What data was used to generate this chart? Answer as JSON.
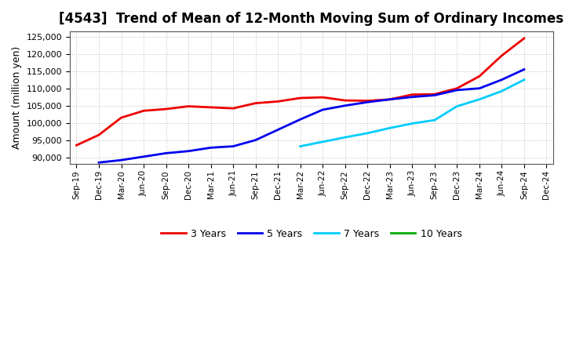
{
  "title": "[4543]  Trend of Mean of 12-Month Moving Sum of Ordinary Incomes",
  "ylabel": "Amount (million yen)",
  "background_color": "#ffffff",
  "grid_color": "#c0c0c0",
  "ylim": [
    88000,
    126500
  ],
  "yticks": [
    90000,
    95000,
    100000,
    105000,
    110000,
    115000,
    120000,
    125000
  ],
  "series": {
    "3 Years": {
      "color": "#ee0000",
      "data": {
        "Sep-19": 93500,
        "Dec-19": 96500,
        "Mar-20": 101500,
        "Jun-20": 103500,
        "Sep-20": 104000,
        "Dec-20": 104800,
        "Mar-21": 104500,
        "Jun-21": 104200,
        "Sep-21": 105700,
        "Dec-21": 106200,
        "Mar-22": 107200,
        "Jun-22": 107400,
        "Sep-22": 106500,
        "Dec-22": 106400,
        "Mar-23": 106800,
        "Jun-23": 108200,
        "Sep-23": 108300,
        "Dec-23": 110000,
        "Mar-24": 113500,
        "Jun-24": 119500,
        "Sep-24": 124500
      }
    },
    "5 Years": {
      "color": "#0000ee",
      "data": {
        "Dec-19": 88500,
        "Mar-20": 89200,
        "Jun-20": 90200,
        "Sep-20": 91200,
        "Dec-20": 91800,
        "Mar-21": 92800,
        "Jun-21": 93200,
        "Sep-21": 95000,
        "Dec-21": 98000,
        "Mar-22": 101000,
        "Jun-22": 103800,
        "Sep-22": 105000,
        "Dec-22": 106000,
        "Mar-23": 106800,
        "Jun-23": 107500,
        "Sep-23": 108000,
        "Dec-23": 109500,
        "Mar-24": 110000,
        "Jun-24": 112500,
        "Sep-24": 115500
      }
    },
    "7 Years": {
      "color": "#00ccff",
      "data": {
        "Mar-22": 93200,
        "Jun-22": 94500,
        "Sep-22": 95800,
        "Dec-22": 97000,
        "Mar-23": 98500,
        "Jun-23": 99800,
        "Sep-23": 100800,
        "Dec-23": 104800,
        "Mar-24": 106800,
        "Jun-24": 109200,
        "Sep-24": 112500
      }
    },
    "10 Years": {
      "color": "#00aa00",
      "data": {}
    }
  },
  "xtick_labels": [
    "Sep-19",
    "Dec-19",
    "Mar-20",
    "Jun-20",
    "Sep-20",
    "Dec-20",
    "Mar-21",
    "Jun-21",
    "Sep-21",
    "Dec-21",
    "Mar-22",
    "Jun-22",
    "Sep-22",
    "Dec-22",
    "Mar-23",
    "Jun-23",
    "Sep-23",
    "Dec-23",
    "Mar-24",
    "Jun-24",
    "Sep-24",
    "Dec-24"
  ],
  "legend_order": [
    "3 Years",
    "5 Years",
    "7 Years",
    "10 Years"
  ],
  "title_fontsize": 12,
  "linewidth": 2.0
}
